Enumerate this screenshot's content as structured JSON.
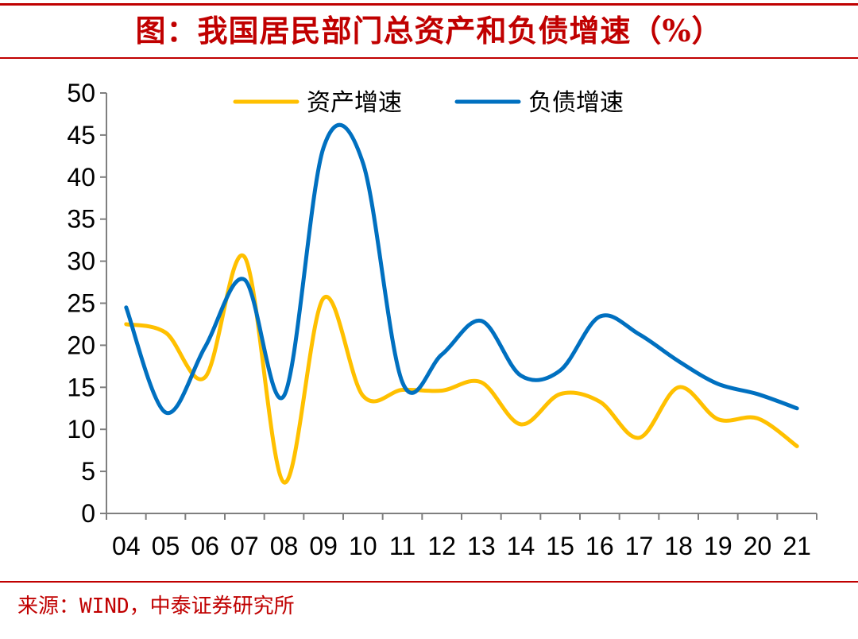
{
  "title": "图：我国居民部门总资产和负债增速（%）",
  "source": "来源：WIND，中泰证券研究所",
  "chart_data": {
    "type": "line",
    "title": "图：我国居民部门总资产和负债增速（%）",
    "xlabel": "",
    "ylabel": "",
    "categories": [
      "04",
      "05",
      "06",
      "07",
      "08",
      "09",
      "10",
      "11",
      "12",
      "13",
      "14",
      "15",
      "16",
      "17",
      "18",
      "19",
      "20",
      "21"
    ],
    "ylim": [
      0,
      50
    ],
    "yticks": [
      0,
      5,
      10,
      15,
      20,
      25,
      30,
      35,
      40,
      45,
      50
    ],
    "grid": false,
    "legend_position": "top-center",
    "series": [
      {
        "name": "资产增速",
        "color": "#FFC000",
        "values": [
          22.5,
          21.5,
          16.2,
          30.5,
          3.7,
          25.6,
          14.0,
          14.7,
          14.6,
          15.6,
          10.6,
          14.2,
          13.3,
          9.0,
          15.0,
          11.2,
          11.3,
          8.0
        ]
      },
      {
        "name": "负债增速",
        "color": "#0070C0",
        "values": [
          24.5,
          12.0,
          19.8,
          27.8,
          14.0,
          43.5,
          41.7,
          15.6,
          18.9,
          22.9,
          16.4,
          17.0,
          23.4,
          21.3,
          18.1,
          15.4,
          14.2,
          12.5
        ]
      }
    ]
  }
}
